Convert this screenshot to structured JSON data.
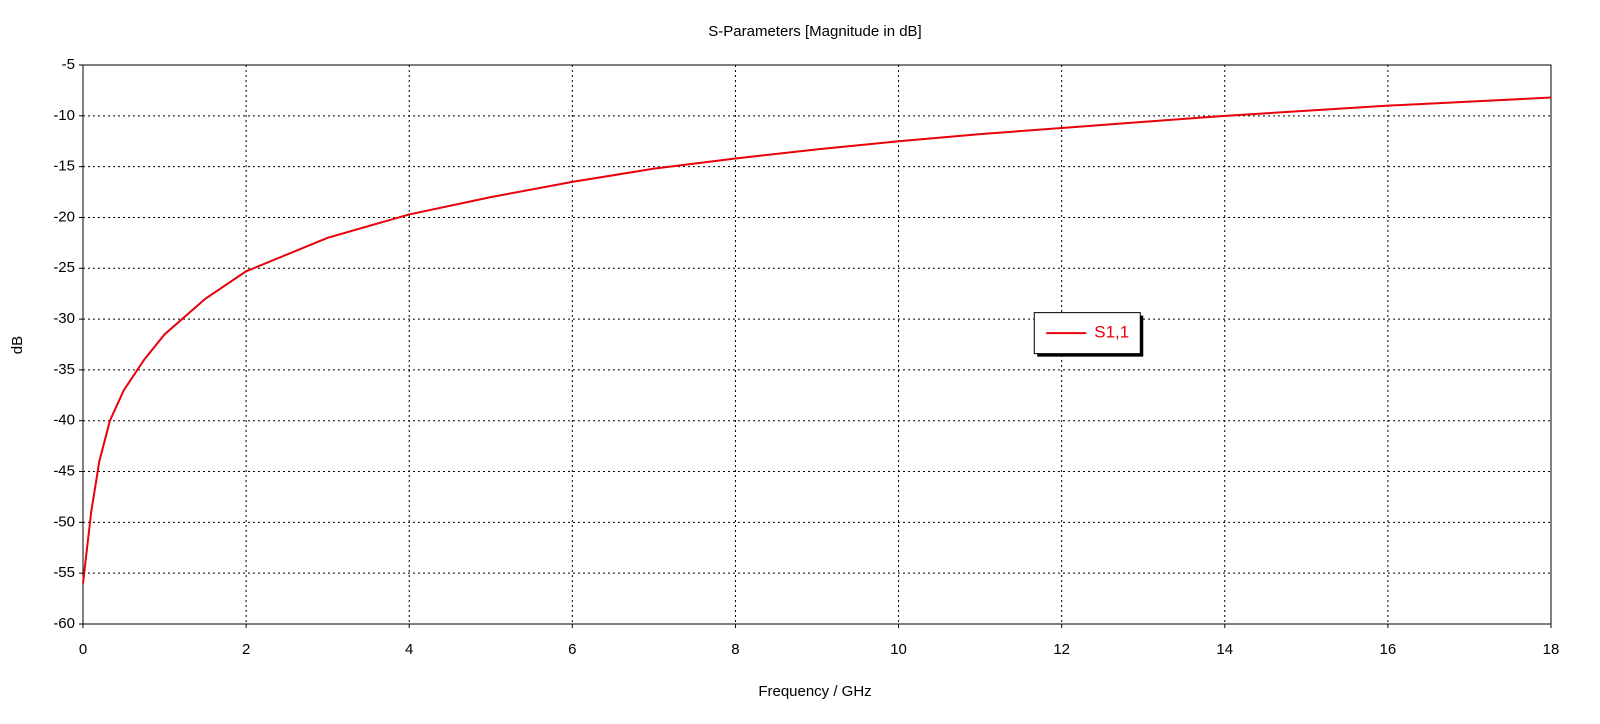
{
  "chart_data": {
    "type": "line",
    "title": "S-Parameters [Magnitude in dB]",
    "x_label": "Frequency / GHz",
    "y_label": "dB",
    "x": [
      0,
      0.05,
      0.1,
      0.2,
      0.33,
      0.5,
      0.75,
      1,
      1.5,
      2,
      3,
      4,
      5,
      6,
      7,
      8,
      9,
      10,
      11,
      12,
      13,
      14,
      15,
      16,
      17,
      18
    ],
    "series": [
      {
        "name": "S1,1",
        "color": "#e8000b",
        "values": [
          -56,
          -52.5,
          -49,
          -44,
          -40,
          -37,
          -34,
          -31.5,
          -28,
          -25.3,
          -22,
          -19.7,
          -18,
          -16.5,
          -15.2,
          -14.2,
          -13.3,
          -12.5,
          -11.8,
          -11.2,
          -10.6,
          -10,
          -9.5,
          -9,
          -8.6,
          -8.2
        ]
      }
    ],
    "xlim": [
      0,
      18
    ],
    "xticks": [
      0,
      2,
      4,
      6,
      8,
      10,
      12,
      14,
      16,
      18
    ],
    "ylim": [
      -60,
      -5
    ],
    "yticks": [
      -60,
      -55,
      -50,
      -45,
      -40,
      -35,
      -30,
      -25,
      -20,
      -15,
      -10,
      -5
    ],
    "grid": true,
    "legend": "center right"
  }
}
